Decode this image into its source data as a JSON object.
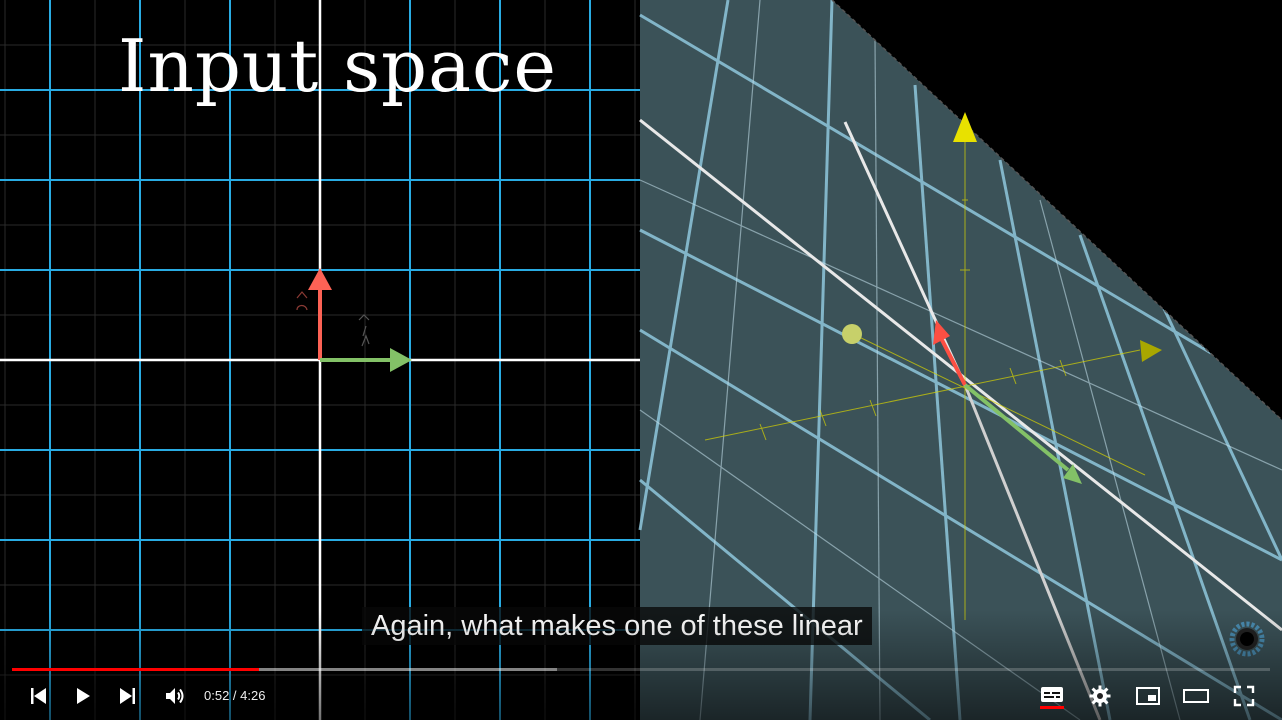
{
  "video": {
    "title_overlay": "Input space",
    "caption": "Again, what makes one of these linear",
    "progress_played": 0.196,
    "progress_buffered": 0.433
  },
  "controls": {
    "current_time": "0:52",
    "separator": " / ",
    "duration": "4:26",
    "buttons": [
      {
        "name": "previous-button",
        "icon": "skip-previous-icon"
      },
      {
        "name": "play-button",
        "icon": "play-icon"
      },
      {
        "name": "next-button",
        "icon": "skip-next-icon"
      },
      {
        "name": "volume-button",
        "icon": "volume-icon"
      },
      {
        "name": "subtitles-button",
        "icon": "subtitles-icon"
      },
      {
        "name": "settings-button",
        "icon": "gear-icon"
      },
      {
        "name": "miniplayer-button",
        "icon": "miniplayer-icon"
      },
      {
        "name": "theater-button",
        "icon": "theater-mode-icon"
      },
      {
        "name": "fullscreen-button",
        "icon": "fullscreen-icon"
      }
    ]
  },
  "colors": {
    "progress": "#ff0000",
    "grid_blue": "#29abe2",
    "vector_i": "#fc6255",
    "vector_j": "#83c167",
    "surface": "#3b5258",
    "axis_yellow": "#d8d400"
  }
}
